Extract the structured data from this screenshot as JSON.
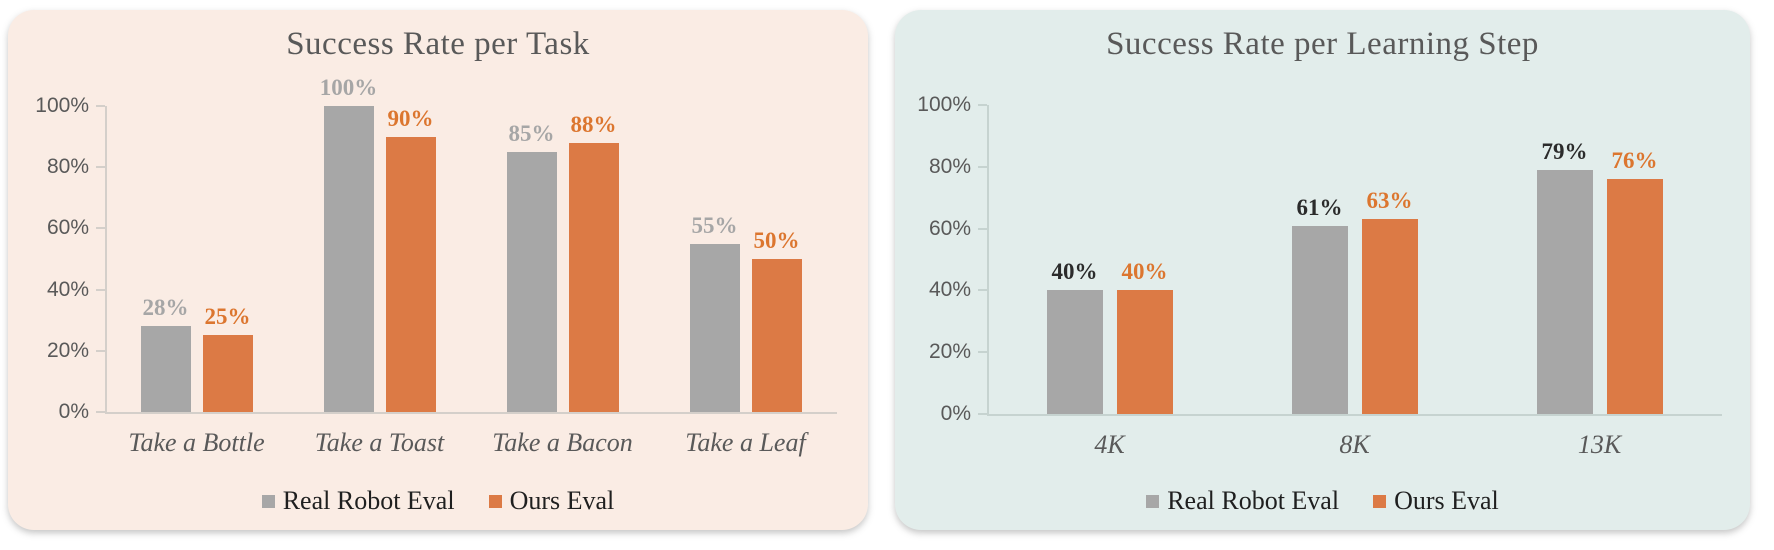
{
  "page": {
    "background": "#ffffff"
  },
  "chart_data": [
    {
      "type": "bar",
      "title": "Success Rate per Task",
      "background": "#FAECE4",
      "categories": [
        "Take a Bottle",
        "Take a Toast",
        "Take a Bacon",
        "Take a Leaf"
      ],
      "series": [
        {
          "name": "Real Robot Eval",
          "values": [
            28,
            100,
            85,
            55
          ],
          "color": "#A7A7A7",
          "label_color": "#A6A6A6"
        },
        {
          "name": "Ours Eval",
          "values": [
            25,
            90,
            88,
            50
          ],
          "color": "#DC7A45",
          "label_color": "#DC762F"
        }
      ],
      "data_label_format": "percent",
      "y_tick_labels": [
        "0%",
        "20%",
        "40%",
        "60%",
        "80%",
        "100%"
      ],
      "ylim": [
        0,
        100
      ],
      "grid": false,
      "legend_position": "bottom"
    },
    {
      "type": "bar",
      "title": "Success Rate per Learning Step",
      "background": "#E2EDEB",
      "categories": [
        "4K",
        "8K",
        "13K"
      ],
      "series": [
        {
          "name": "Real Robot Eval",
          "values": [
            40,
            61,
            79
          ],
          "color": "#A7A7A7",
          "label_color": "#2B2B2B"
        },
        {
          "name": "Ours Eval",
          "values": [
            40,
            63,
            76
          ],
          "color": "#DC7A45",
          "label_color": "#DC762F"
        }
      ],
      "data_label_format": "percent",
      "y_tick_labels": [
        "0%",
        "20%",
        "40%",
        "60%",
        "80%",
        "100%"
      ],
      "ylim": [
        0,
        100
      ],
      "grid": false,
      "legend_position": "bottom"
    }
  ]
}
